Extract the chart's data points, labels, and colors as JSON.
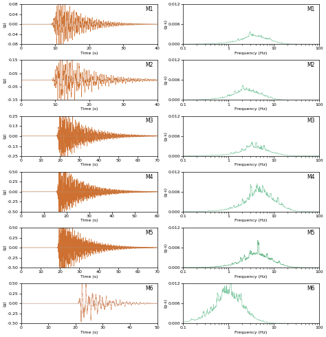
{
  "motions": [
    {
      "label": "M1",
      "time_xlim": [
        0,
        40
      ],
      "time_xticks": [
        0,
        10,
        20,
        30,
        40
      ],
      "time_ylim": [
        -0.08,
        0.08
      ],
      "time_yticks": [
        -0.08,
        -0.04,
        0.0,
        0.04,
        0.08
      ],
      "peak_time": 11,
      "duration": 40,
      "amp": 0.06,
      "decay": 0.15,
      "rise": 0.8,
      "freq_color": "#7cc8a0",
      "time_color": "#c8601a",
      "dominant_freq": 3.0,
      "freq_max_amp": 0.0025,
      "freq_cutoff": 8.0,
      "seed": 101
    },
    {
      "label": "M2",
      "time_xlim": [
        0,
        40
      ],
      "time_xticks": [
        0,
        10,
        20,
        30,
        40
      ],
      "time_ylim": [
        -0.15,
        0.15
      ],
      "time_yticks": [
        -0.15,
        -0.05,
        0.05,
        0.15
      ],
      "peak_time": 11,
      "duration": 40,
      "amp": 0.12,
      "decay": 0.12,
      "rise": 0.7,
      "freq_color": "#7cc8a0",
      "time_color": "#c8601a",
      "dominant_freq": 2.0,
      "freq_max_amp": 0.003,
      "freq_cutoff": 6.0,
      "seed": 202
    },
    {
      "label": "M3",
      "time_xlim": [
        0,
        70
      ],
      "time_xticks": [
        0,
        10,
        20,
        30,
        40,
        50,
        60,
        70
      ],
      "time_ylim": [
        -0.25,
        0.25
      ],
      "time_yticks": [
        -0.25,
        -0.13,
        0.0,
        0.13,
        0.25
      ],
      "peak_time": 20,
      "duration": 70,
      "amp": 0.18,
      "decay": 0.08,
      "rise": 0.6,
      "freq_color": "#7cc8a0",
      "time_color": "#c8601a",
      "dominant_freq": 3.0,
      "freq_max_amp": 0.0025,
      "freq_cutoff": 12.0,
      "seed": 303
    },
    {
      "label": "M4",
      "time_xlim": [
        0,
        60
      ],
      "time_xticks": [
        0,
        10,
        20,
        30,
        40,
        50,
        60
      ],
      "time_ylim": [
        -0.5,
        0.5
      ],
      "time_yticks": [
        -0.5,
        -0.25,
        0.0,
        0.25,
        0.5
      ],
      "peak_time": 17,
      "duration": 60,
      "amp": 0.38,
      "decay": 0.1,
      "rise": 0.5,
      "freq_color": "#7cc8a0",
      "time_color": "#c8601a",
      "dominant_freq": 4.0,
      "freq_max_amp": 0.006,
      "freq_cutoff": 15.0,
      "seed": 404
    },
    {
      "label": "M5",
      "time_xlim": [
        0,
        70
      ],
      "time_xticks": [
        0,
        10,
        20,
        30,
        40,
        50,
        60,
        70
      ],
      "time_ylim": [
        -0.5,
        0.5
      ],
      "time_yticks": [
        -0.5,
        -0.25,
        0.0,
        0.25,
        0.5
      ],
      "peak_time": 20,
      "duration": 70,
      "amp": 0.42,
      "decay": 0.09,
      "rise": 0.5,
      "freq_color": "#4aaa70",
      "time_color": "#c8601a",
      "dominant_freq": 3.5,
      "freq_max_amp": 0.004,
      "freq_cutoff": 12.0,
      "seed": 505
    },
    {
      "label": "M6",
      "time_xlim": [
        0,
        50
      ],
      "time_xticks": [
        0,
        10,
        20,
        30,
        40,
        50
      ],
      "time_ylim": [
        -0.5,
        0.5
      ],
      "time_yticks": [
        -0.5,
        -0.25,
        0.0,
        0.25,
        0.5
      ],
      "peak_time": 22,
      "duration": 50,
      "amp": 0.32,
      "decay": 0.14,
      "rise": 0.4,
      "freq_color": "#7cc8a0",
      "time_color": "#d4906a",
      "dominant_freq": 0.8,
      "freq_max_amp": 0.009,
      "freq_cutoff": 5.0,
      "seed": 606
    }
  ],
  "freq_ylim": [
    0,
    0.012
  ],
  "freq_yticks": [
    0.0,
    0.006,
    0.012
  ],
  "freq_xlim": [
    0.1,
    100
  ],
  "ylabel_time": "(g)",
  "ylabel_freq": "(g·s)",
  "xlabel_time": "Time (s)",
  "xlabel_freq": "Frequency (Hz)"
}
